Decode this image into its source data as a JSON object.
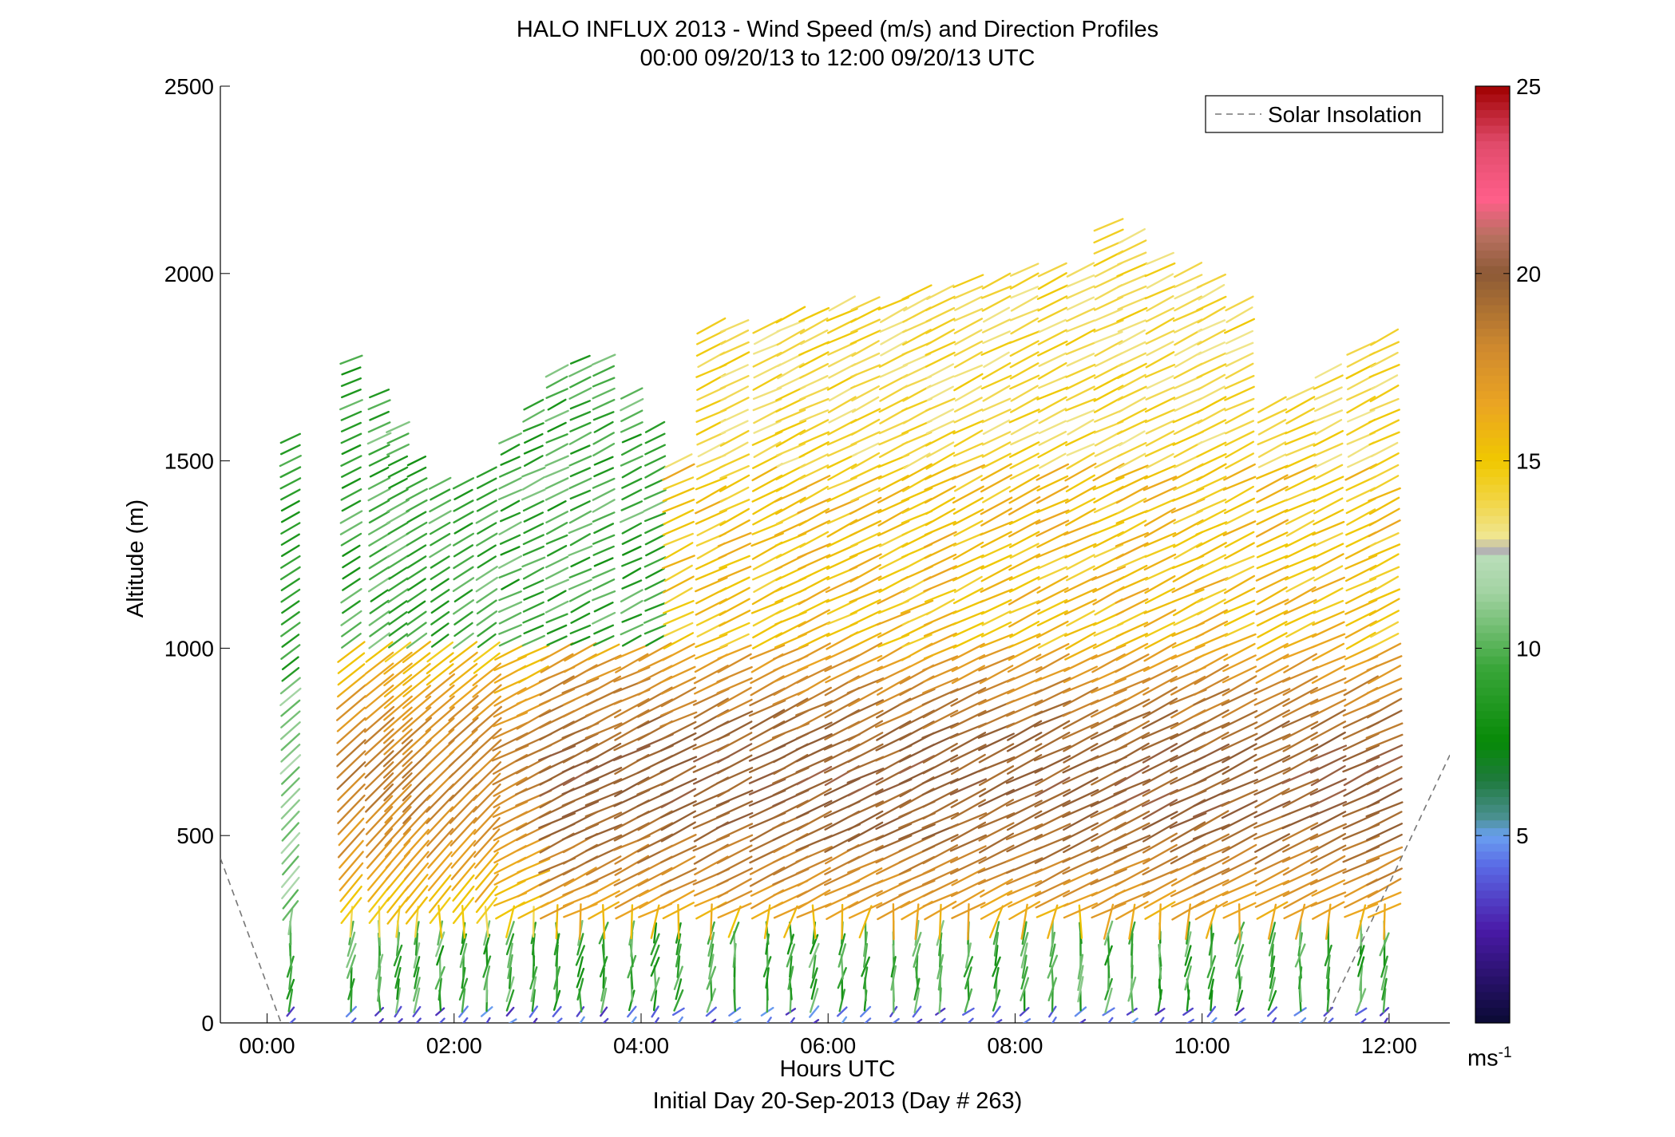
{
  "chart_data": {
    "type": "quiver",
    "title": "HALO INFLUX 2013 - Wind Speed (m/s) and Direction Profiles",
    "subtitle": "00:00 09/20/13 to 12:00 09/20/13  UTC",
    "xlabel": "Hours UTC",
    "xlabel2": "Initial Day 20-Sep-2013 (Day # 263)",
    "ylabel": "Altitude (m)",
    "xlim": [
      -0.5,
      12.65
    ],
    "ylim": [
      0,
      2500
    ],
    "x_ticks": [
      {
        "value": 0,
        "label": "00:00"
      },
      {
        "value": 2,
        "label": "02:00"
      },
      {
        "value": 4,
        "label": "04:00"
      },
      {
        "value": 6,
        "label": "06:00"
      },
      {
        "value": 8,
        "label": "08:00"
      },
      {
        "value": 10,
        "label": "10:00"
      },
      {
        "value": 12,
        "label": "12:00"
      }
    ],
    "y_ticks": [
      {
        "value": 0,
        "label": "0"
      },
      {
        "value": 500,
        "label": "500"
      },
      {
        "value": 1000,
        "label": "1000"
      },
      {
        "value": 1500,
        "label": "1500"
      },
      {
        "value": 2000,
        "label": "2000"
      },
      {
        "value": 2500,
        "label": "2500"
      }
    ],
    "legend": {
      "label": "Solar Insolation",
      "position": "top-right",
      "color": "#777777"
    },
    "solar_insolation": [
      {
        "x": -0.5,
        "y": 440
      },
      {
        "x": 0.15,
        "y": 0
      },
      {
        "x": 11.3,
        "y": 0
      },
      {
        "x": 12.65,
        "y": 715
      }
    ],
    "colorbar": {
      "min": 0,
      "max": 25,
      "ticks": [
        {
          "value": 5,
          "label": "5"
        },
        {
          "value": 10,
          "label": "10"
        },
        {
          "value": 15,
          "label": "15"
        },
        {
          "value": 20,
          "label": "20"
        },
        {
          "value": 25,
          "label": "25"
        }
      ],
      "unit": "ms",
      "unit_exp": "-1",
      "stops": [
        {
          "v": 0,
          "c": "#0a0a33"
        },
        {
          "v": 2.5,
          "c": "#4a1aa8"
        },
        {
          "v": 4.2,
          "c": "#5a6ae6"
        },
        {
          "v": 5.0,
          "c": "#6aa0f0"
        },
        {
          "v": 5.5,
          "c": "#4a9090"
        },
        {
          "v": 6.5,
          "c": "#1e7a3c"
        },
        {
          "v": 7.5,
          "c": "#078a07"
        },
        {
          "v": 9.5,
          "c": "#3aa63a"
        },
        {
          "v": 11.5,
          "c": "#a3d3a3"
        },
        {
          "v": 12.4,
          "c": "#b8ddb8"
        },
        {
          "v": 12.6,
          "c": "#b3b3b3"
        },
        {
          "v": 13.0,
          "c": "#f0e690"
        },
        {
          "v": 14.0,
          "c": "#f2d440"
        },
        {
          "v": 15.0,
          "c": "#f0c800"
        },
        {
          "v": 16.5,
          "c": "#eba522"
        },
        {
          "v": 18.0,
          "c": "#d08a2e"
        },
        {
          "v": 20.0,
          "c": "#8c5a36"
        },
        {
          "v": 21.0,
          "c": "#b87060"
        },
        {
          "v": 22.0,
          "c": "#ff5f8a"
        },
        {
          "v": 23.5,
          "c": "#e04a6a"
        },
        {
          "v": 25.0,
          "c": "#a00000"
        }
      ]
    },
    "profile_times": [
      0.25,
      0.9,
      1.2,
      1.4,
      1.6,
      1.85,
      2.1,
      2.35,
      2.6,
      2.85,
      3.1,
      3.35,
      3.6,
      3.9,
      4.15,
      4.4,
      4.75,
      5.0,
      5.35,
      5.6,
      5.85,
      6.15,
      6.4,
      6.7,
      6.95,
      7.2,
      7.5,
      7.8,
      8.1,
      8.4,
      8.7,
      9.0,
      9.25,
      9.55,
      9.85,
      10.1,
      10.4,
      10.75,
      11.05,
      11.35,
      11.7,
      11.95
    ]
  }
}
